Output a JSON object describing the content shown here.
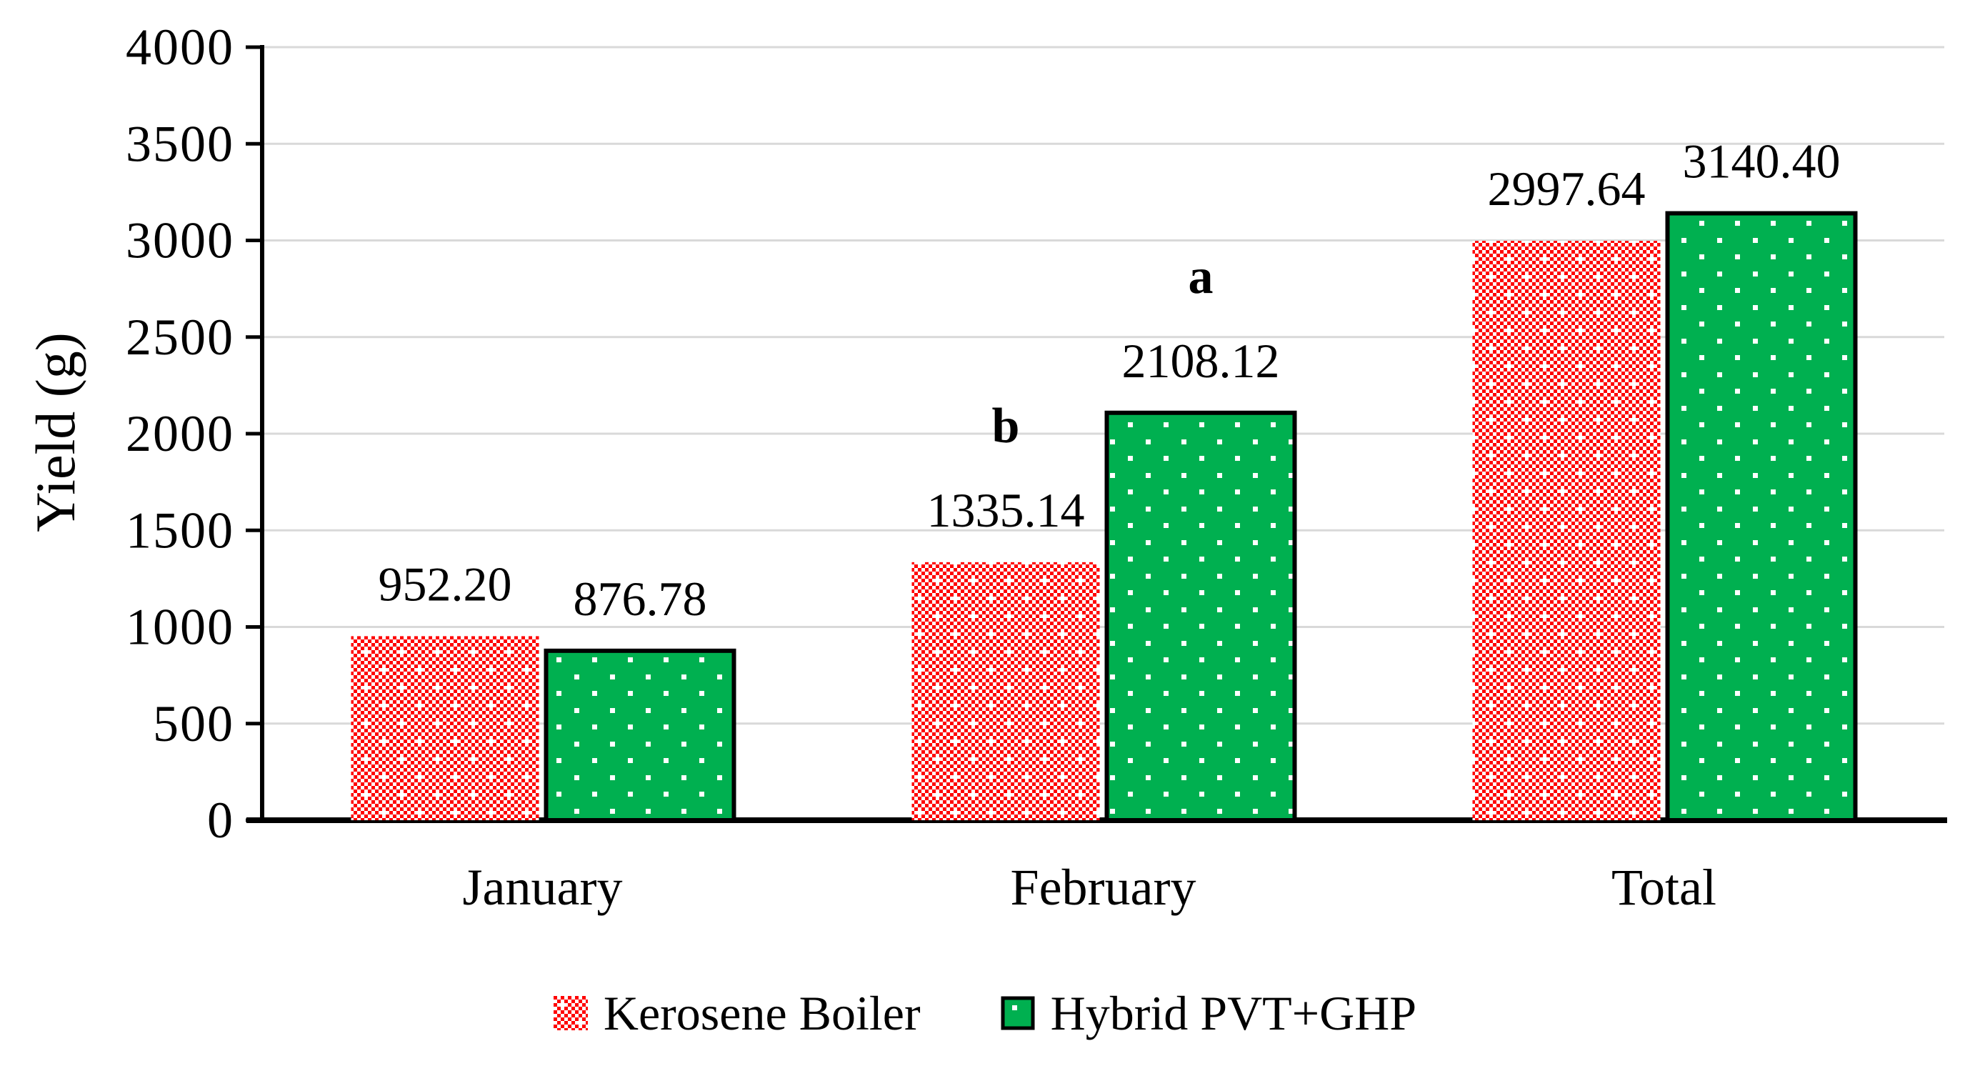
{
  "chart_data": {
    "type": "bar",
    "title": "",
    "ylabel": "Yield (g)",
    "xlabel": "",
    "categories": [
      "January",
      "February",
      "Total"
    ],
    "series": [
      {
        "name": "Kerosene Boiler",
        "values": [
          952.2,
          1335.14,
          2997.64
        ],
        "labels": [
          "952.20",
          "1335.14",
          "2997.64"
        ],
        "color": "#FF0000",
        "pattern": "red-trellis-checker-on-white",
        "border": false
      },
      {
        "name": "Hybrid PVT+GHP",
        "values": [
          876.78,
          2108.12,
          3140.4
        ],
        "labels": [
          "876.78",
          "2108.12",
          "3140.40"
        ],
        "color": "#00B050",
        "pattern": "white-dots-on-green",
        "border": true
      }
    ],
    "bar_annotations": [
      {
        "category": "February",
        "series_index": 0,
        "text": "b"
      },
      {
        "category": "February",
        "series_index": 1,
        "text": "a"
      }
    ],
    "ylim": [
      0,
      4000
    ],
    "ytick_step": 500,
    "ytick_labels": [
      "0",
      "500",
      "1000",
      "1500",
      "2000",
      "2500",
      "3000",
      "3500",
      "4000"
    ],
    "grid": true,
    "gridline_color": "#D9D9D9",
    "axis_color": "#000000",
    "legend_position": "bottom"
  }
}
